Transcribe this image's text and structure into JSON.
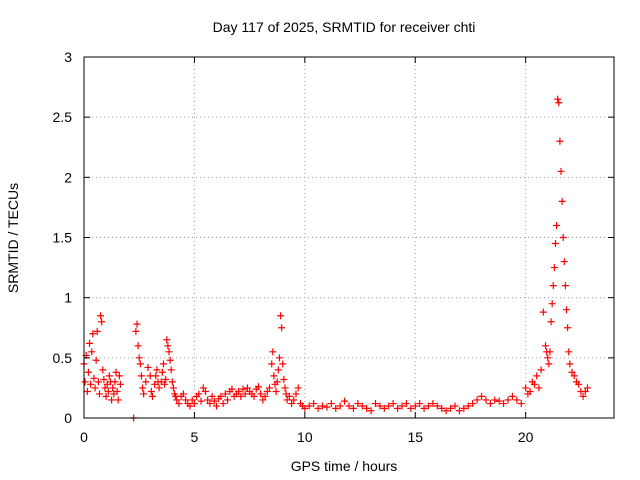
{
  "chart_data": {
    "type": "scatter",
    "title": "Day 117 of 2025, SRMTID for receiver chti",
    "xlabel": "GPS time / hours",
    "ylabel": "SRMTID / TECUs",
    "xlim": [
      0,
      24
    ],
    "ylim": [
      0,
      3
    ],
    "xticks": [
      "0",
      "5",
      "10",
      "15",
      "20"
    ],
    "yticks": [
      "0",
      "0.5",
      "1",
      "1.5",
      "2",
      "2.5",
      "3"
    ],
    "grid": true,
    "marker": "+",
    "color": "#ff0000",
    "series": [
      {
        "name": "SRMTID",
        "points": [
          [
            0.0,
            0.45
          ],
          [
            0.05,
            0.3
          ],
          [
            0.1,
            0.52
          ],
          [
            0.15,
            0.22
          ],
          [
            0.2,
            0.38
          ],
          [
            0.25,
            0.62
          ],
          [
            0.3,
            0.28
          ],
          [
            0.35,
            0.55
          ],
          [
            0.4,
            0.7
          ],
          [
            0.45,
            0.33
          ],
          [
            0.5,
            0.25
          ],
          [
            0.55,
            0.48
          ],
          [
            0.6,
            0.72
          ],
          [
            0.65,
            0.3
          ],
          [
            0.7,
            0.2
          ],
          [
            0.75,
            0.85
          ],
          [
            0.8,
            0.8
          ],
          [
            0.85,
            0.4
          ],
          [
            0.9,
            0.32
          ],
          [
            0.95,
            0.25
          ],
          [
            1.0,
            0.18
          ],
          [
            1.05,
            0.28
          ],
          [
            1.1,
            0.22
          ],
          [
            1.15,
            0.35
          ],
          [
            1.2,
            0.3
          ],
          [
            1.25,
            0.15
          ],
          [
            1.3,
            0.25
          ],
          [
            1.35,
            0.2
          ],
          [
            1.4,
            0.3
          ],
          [
            1.45,
            0.38
          ],
          [
            1.5,
            0.22
          ],
          [
            1.55,
            0.15
          ],
          [
            1.6,
            0.35
          ],
          [
            1.65,
            0.28
          ],
          [
            2.25,
            0.0
          ],
          [
            2.35,
            0.72
          ],
          [
            2.4,
            0.78
          ],
          [
            2.45,
            0.6
          ],
          [
            2.5,
            0.5
          ],
          [
            2.55,
            0.45
          ],
          [
            2.6,
            0.35
          ],
          [
            2.65,
            0.25
          ],
          [
            2.7,
            0.2
          ],
          [
            2.8,
            0.3
          ],
          [
            2.9,
            0.42
          ],
          [
            3.0,
            0.35
          ],
          [
            3.05,
            0.22
          ],
          [
            3.1,
            0.18
          ],
          [
            3.2,
            0.28
          ],
          [
            3.25,
            0.35
          ],
          [
            3.3,
            0.4
          ],
          [
            3.35,
            0.3
          ],
          [
            3.4,
            0.25
          ],
          [
            3.5,
            0.3
          ],
          [
            3.55,
            0.38
          ],
          [
            3.6,
            0.45
          ],
          [
            3.65,
            0.28
          ],
          [
            3.7,
            0.32
          ],
          [
            3.75,
            0.65
          ],
          [
            3.8,
            0.6
          ],
          [
            3.85,
            0.55
          ],
          [
            3.9,
            0.48
          ],
          [
            3.95,
            0.4
          ],
          [
            4.0,
            0.3
          ],
          [
            4.05,
            0.25
          ],
          [
            4.1,
            0.2
          ],
          [
            4.15,
            0.18
          ],
          [
            4.2,
            0.15
          ],
          [
            4.3,
            0.12
          ],
          [
            4.4,
            0.18
          ],
          [
            4.5,
            0.2
          ],
          [
            4.6,
            0.15
          ],
          [
            4.7,
            0.12
          ],
          [
            4.8,
            0.1
          ],
          [
            4.9,
            0.15
          ],
          [
            5.0,
            0.12
          ],
          [
            5.1,
            0.18
          ],
          [
            5.2,
            0.2
          ],
          [
            5.3,
            0.14
          ],
          [
            5.4,
            0.25
          ],
          [
            5.5,
            0.22
          ],
          [
            5.6,
            0.15
          ],
          [
            5.7,
            0.12
          ],
          [
            5.8,
            0.18
          ],
          [
            5.9,
            0.14
          ],
          [
            6.0,
            0.1
          ],
          [
            6.1,
            0.16
          ],
          [
            6.2,
            0.18
          ],
          [
            6.3,
            0.12
          ],
          [
            6.4,
            0.2
          ],
          [
            6.5,
            0.15
          ],
          [
            6.6,
            0.22
          ],
          [
            6.7,
            0.24
          ],
          [
            6.8,
            0.18
          ],
          [
            6.9,
            0.2
          ],
          [
            7.0,
            0.22
          ],
          [
            7.1,
            0.18
          ],
          [
            7.2,
            0.24
          ],
          [
            7.3,
            0.2
          ],
          [
            7.4,
            0.25
          ],
          [
            7.5,
            0.22
          ],
          [
            7.6,
            0.2
          ],
          [
            7.7,
            0.18
          ],
          [
            7.8,
            0.24
          ],
          [
            7.9,
            0.26
          ],
          [
            8.0,
            0.2
          ],
          [
            8.1,
            0.15
          ],
          [
            8.2,
            0.18
          ],
          [
            8.3,
            0.22
          ],
          [
            8.4,
            0.25
          ],
          [
            8.5,
            0.45
          ],
          [
            8.55,
            0.55
          ],
          [
            8.6,
            0.35
          ],
          [
            8.65,
            0.28
          ],
          [
            8.7,
            0.22
          ],
          [
            8.75,
            0.3
          ],
          [
            8.8,
            0.4
          ],
          [
            8.85,
            0.5
          ],
          [
            8.9,
            0.85
          ],
          [
            8.95,
            0.75
          ],
          [
            9.0,
            0.45
          ],
          [
            9.05,
            0.32
          ],
          [
            9.1,
            0.25
          ],
          [
            9.15,
            0.2
          ],
          [
            9.2,
            0.15
          ],
          [
            9.3,
            0.18
          ],
          [
            9.4,
            0.12
          ],
          [
            9.5,
            0.15
          ],
          [
            9.6,
            0.2
          ],
          [
            9.7,
            0.25
          ],
          [
            9.8,
            0.12
          ],
          [
            9.9,
            0.1
          ],
          [
            10.0,
            0.08
          ],
          [
            10.2,
            0.1
          ],
          [
            10.4,
            0.12
          ],
          [
            10.6,
            0.08
          ],
          [
            10.8,
            0.1
          ],
          [
            11.0,
            0.09
          ],
          [
            11.2,
            0.12
          ],
          [
            11.4,
            0.08
          ],
          [
            11.6,
            0.1
          ],
          [
            11.8,
            0.14
          ],
          [
            12.0,
            0.1
          ],
          [
            12.2,
            0.08
          ],
          [
            12.4,
            0.12
          ],
          [
            12.6,
            0.1
          ],
          [
            12.8,
            0.08
          ],
          [
            13.0,
            0.06
          ],
          [
            13.2,
            0.12
          ],
          [
            13.4,
            0.1
          ],
          [
            13.6,
            0.08
          ],
          [
            13.8,
            0.1
          ],
          [
            14.0,
            0.12
          ],
          [
            14.2,
            0.08
          ],
          [
            14.4,
            0.1
          ],
          [
            14.6,
            0.12
          ],
          [
            14.8,
            0.08
          ],
          [
            15.0,
            0.1
          ],
          [
            15.2,
            0.12
          ],
          [
            15.4,
            0.08
          ],
          [
            15.6,
            0.1
          ],
          [
            15.8,
            0.12
          ],
          [
            16.0,
            0.1
          ],
          [
            16.2,
            0.08
          ],
          [
            16.4,
            0.06
          ],
          [
            16.6,
            0.08
          ],
          [
            16.8,
            0.1
          ],
          [
            17.0,
            0.06
          ],
          [
            17.2,
            0.08
          ],
          [
            17.4,
            0.1
          ],
          [
            17.6,
            0.12
          ],
          [
            17.8,
            0.15
          ],
          [
            18.0,
            0.18
          ],
          [
            18.2,
            0.15
          ],
          [
            18.4,
            0.12
          ],
          [
            18.6,
            0.15
          ],
          [
            18.8,
            0.14
          ],
          [
            19.0,
            0.12
          ],
          [
            19.2,
            0.15
          ],
          [
            19.4,
            0.18
          ],
          [
            19.6,
            0.15
          ],
          [
            19.8,
            0.12
          ],
          [
            20.0,
            0.25
          ],
          [
            20.1,
            0.2
          ],
          [
            20.2,
            0.22
          ],
          [
            20.3,
            0.3
          ],
          [
            20.4,
            0.28
          ],
          [
            20.5,
            0.35
          ],
          [
            20.6,
            0.25
          ],
          [
            20.7,
            0.4
          ],
          [
            20.8,
            0.88
          ],
          [
            20.9,
            0.6
          ],
          [
            20.95,
            0.55
          ],
          [
            21.0,
            0.5
          ],
          [
            21.05,
            0.45
          ],
          [
            21.1,
            0.55
          ],
          [
            21.15,
            0.8
          ],
          [
            21.2,
            0.95
          ],
          [
            21.25,
            1.1
          ],
          [
            21.3,
            1.25
          ],
          [
            21.35,
            1.45
          ],
          [
            21.4,
            1.6
          ],
          [
            21.45,
            2.65
          ],
          [
            21.5,
            2.62
          ],
          [
            21.55,
            2.3
          ],
          [
            21.6,
            2.05
          ],
          [
            21.65,
            1.8
          ],
          [
            21.7,
            1.5
          ],
          [
            21.75,
            1.3
          ],
          [
            21.8,
            1.1
          ],
          [
            21.85,
            0.9
          ],
          [
            21.9,
            0.75
          ],
          [
            21.95,
            0.55
          ],
          [
            22.0,
            0.45
          ],
          [
            22.1,
            0.38
          ],
          [
            22.2,
            0.35
          ],
          [
            22.3,
            0.3
          ],
          [
            22.4,
            0.28
          ],
          [
            22.5,
            0.22
          ],
          [
            22.6,
            0.18
          ],
          [
            22.7,
            0.22
          ],
          [
            22.8,
            0.25
          ]
        ]
      }
    ]
  }
}
